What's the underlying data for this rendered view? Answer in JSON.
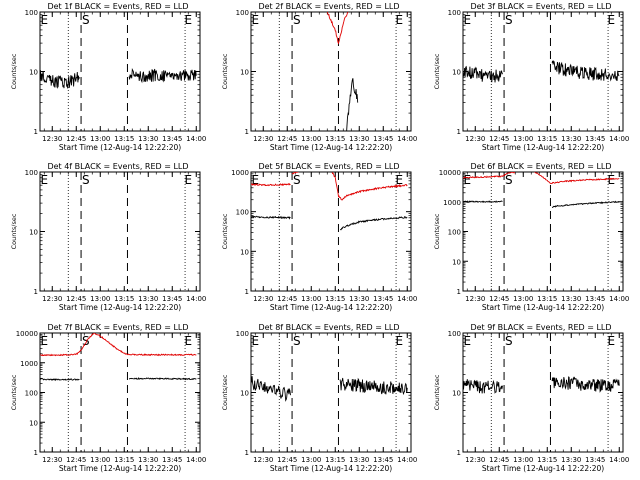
{
  "x_tick_labels": [
    "12:30",
    "12:45",
    "13:00",
    "13:15",
    "13:30",
    "13:45",
    "14:00"
  ],
  "xlabel": "Start Time (12-Aug-14 12:22:20)",
  "ylabel": "Counts/sec",
  "markers": {
    "E": "E",
    "S": "S"
  },
  "colors": {
    "events": "#000000",
    "lld": "#e00000"
  },
  "chart_data": [
    {
      "type": "line",
      "title": "Det 1f BLACK = Events, RED = LLD",
      "xlabel": "Start Time (12-Aug-14 12:22:20)",
      "ylabel": "Counts/sec",
      "x_unit": "minutes after 12:22:20",
      "xlim": [
        "12:22:20",
        "14:02:20"
      ],
      "ylim": [
        1,
        100
      ],
      "y_ticks": [
        "1",
        "10",
        "100"
      ],
      "yscale": "log",
      "dotted_lines": [
        "12:40",
        "13:53"
      ],
      "dashed_lines": [
        "12:48",
        "13:17"
      ],
      "labels": [
        {
          "text": "E",
          "x": "12:25"
        },
        {
          "text": "E",
          "x": "13:55"
        },
        {
          "text": "S",
          "x": "12:51"
        }
      ],
      "series": [
        {
          "color": "black",
          "segments": [
            {
              "x": [
                "12:22:20",
                "12:30",
                "12:40",
                "12:47"
              ],
              "y": [
                9,
                7,
                6.5,
                8
              ]
            },
            {
              "x": [
                "13:18",
                "13:30",
                "13:45",
                "14:00"
              ],
              "y": [
                9,
                8.5,
                9,
                8.5
              ]
            }
          ]
        }
      ]
    },
    {
      "type": "line",
      "title": "Det 2f BLACK = Events, RED = LLD",
      "xlabel": "Start Time (12-Aug-14 12:22:20)",
      "ylabel": "Counts/sec",
      "x_unit": "minutes after 12:22:20",
      "xlim": [
        "12:22:20",
        "14:02:20"
      ],
      "ylim": [
        1,
        100
      ],
      "y_ticks": [
        "1",
        "10",
        "100"
      ],
      "yscale": "log",
      "dotted_lines": [
        "12:40",
        "13:53"
      ],
      "dashed_lines": [
        "12:48",
        "13:17"
      ],
      "labels": [
        {
          "text": "E",
          "x": "12:25"
        },
        {
          "text": "E",
          "x": "13:55"
        },
        {
          "text": "S",
          "x": "12:51"
        }
      ],
      "series": [
        {
          "color": "black",
          "segments": [
            {
              "x": [
                "13:22",
                "13:23",
                "13:24",
                "13:25",
                "13:26",
                "13:27",
                "13:28",
                "13:29"
              ],
              "y": [
                1,
                1.6,
                3,
                5,
                6,
                5,
                4,
                3
              ]
            }
          ]
        },
        {
          "color": "red",
          "segments": [
            {
              "x": [
                "13:10",
                "13:15",
                "13:17",
                "13:19",
                "13:21",
                "13:23"
              ],
              "y": [
                100,
                50,
                30,
                50,
                80,
                100
              ]
            }
          ]
        }
      ]
    },
    {
      "type": "line",
      "title": "Det 3f BLACK = Events, RED = LLD",
      "xlabel": "Start Time (12-Aug-14 12:22:20)",
      "ylabel": "Counts/sec",
      "x_unit": "minutes after 12:22:20",
      "xlim": [
        "12:22:20",
        "14:02:20"
      ],
      "ylim": [
        1,
        100
      ],
      "y_ticks": [
        "1",
        "10",
        "100"
      ],
      "yscale": "log",
      "dotted_lines": [
        "12:40",
        "13:53"
      ],
      "dashed_lines": [
        "12:48",
        "13:17"
      ],
      "labels": [
        {
          "text": "E",
          "x": "12:25"
        },
        {
          "text": "E",
          "x": "13:55"
        },
        {
          "text": "S",
          "x": "12:51"
        }
      ],
      "series": [
        {
          "color": "black",
          "segments": [
            {
              "x": [
                "12:22:20",
                "12:30",
                "12:40",
                "12:47"
              ],
              "y": [
                10,
                9,
                8,
                9
              ]
            },
            {
              "x": [
                "13:18",
                "13:20",
                "13:30",
                "13:45",
                "14:00"
              ],
              "y": [
                13,
                12,
                10,
                9,
                8.5
              ]
            }
          ]
        }
      ]
    },
    {
      "type": "line",
      "title": "Det 4f BLACK = Events, RED = LLD",
      "xlabel": "Start Time (12-Aug-14 12:22:20)",
      "ylabel": "Counts/sec",
      "x_unit": "minutes after 12:22:20",
      "xlim": [
        "12:22:20",
        "14:02:20"
      ],
      "ylim": [
        1,
        100
      ],
      "y_ticks": [
        "1",
        "10",
        "100"
      ],
      "yscale": "log",
      "dotted_lines": [
        "12:40",
        "13:53"
      ],
      "dashed_lines": [
        "12:48",
        "13:17"
      ],
      "labels": [
        {
          "text": "E",
          "x": "12:25"
        },
        {
          "text": "E",
          "x": "13:55"
        },
        {
          "text": "S",
          "x": "12:51"
        }
      ],
      "series": []
    },
    {
      "type": "line",
      "title": "Det 5f BLACK = Events, RED = LLD",
      "xlabel": "Start Time (12-Aug-14 12:22:20)",
      "ylabel": "Counts/sec",
      "x_unit": "minutes after 12:22:20",
      "xlim": [
        "12:22:20",
        "14:02:20"
      ],
      "ylim": [
        1,
        1000
      ],
      "y_ticks": [
        "1",
        "10",
        "100",
        "1000"
      ],
      "yscale": "log",
      "dotted_lines": [
        "12:40",
        "13:53"
      ],
      "dashed_lines": [
        "12:48",
        "13:17"
      ],
      "labels": [
        {
          "text": "E",
          "x": "12:25"
        },
        {
          "text": "E",
          "x": "13:55"
        },
        {
          "text": "S",
          "x": "12:51"
        }
      ],
      "series": [
        {
          "color": "black",
          "segments": [
            {
              "x": [
                "12:22:20",
                "12:35",
                "12:47"
              ],
              "y": [
                75,
                72,
                70
              ]
            },
            {
              "x": [
                "13:18",
                "13:20",
                "13:25",
                "13:30",
                "13:40",
                "13:50",
                "14:00"
              ],
              "y": [
                35,
                40,
                48,
                55,
                62,
                68,
                72
              ]
            }
          ]
        },
        {
          "color": "red",
          "segments": [
            {
              "x": [
                "12:22:20",
                "12:35",
                "12:47"
              ],
              "y": [
                480,
                470,
                490
              ]
            },
            {
              "x": [
                "12:48",
                "12:50",
                "12:52"
              ],
              "y": [
                900,
                1000,
                1000
              ]
            },
            {
              "x": [
                "13:13",
                "13:15",
                "13:17",
                "13:19",
                "13:22",
                "13:30",
                "13:40",
                "13:50",
                "14:00"
              ],
              "y": [
                1000,
                700,
                250,
                200,
                250,
                320,
                380,
                430,
                470
              ]
            }
          ]
        }
      ]
    },
    {
      "type": "line",
      "title": "Det 6f BLACK = Events, RED = LLD",
      "xlabel": "Start Time (12-Aug-14 12:22:20)",
      "ylabel": "Counts/sec",
      "x_unit": "minutes after 12:22:20",
      "xlim": [
        "12:22:20",
        "14:02:20"
      ],
      "ylim": [
        1,
        10000
      ],
      "y_ticks": [
        "1",
        "10",
        "100",
        "1000",
        "10000"
      ],
      "yscale": "log",
      "dotted_lines": [
        "12:40",
        "13:53"
      ],
      "dashed_lines": [
        "12:48",
        "13:17"
      ],
      "labels": [
        {
          "text": "E",
          "x": "12:25"
        },
        {
          "text": "E",
          "x": "13:55"
        },
        {
          "text": "S",
          "x": "12:51"
        }
      ],
      "series": [
        {
          "color": "black",
          "segments": [
            {
              "x": [
                "12:22:20",
                "12:35",
                "12:47"
              ],
              "y": [
                1000,
                1000,
                1020
              ]
            },
            {
              "x": [
                "13:18",
                "13:20",
                "13:30",
                "13:45",
                "14:00"
              ],
              "y": [
                650,
                700,
                800,
                900,
                1000
              ]
            }
          ]
        },
        {
          "color": "red",
          "segments": [
            {
              "x": [
                "12:22:20",
                "12:35",
                "12:47",
                "12:50",
                "12:55"
              ],
              "y": [
                6500,
                6800,
                7200,
                9000,
                10000
              ]
            },
            {
              "x": [
                "13:07",
                "13:12",
                "13:17",
                "13:25",
                "13:40",
                "14:00"
              ],
              "y": [
                10000,
                7000,
                4200,
                4800,
                5500,
                6000
              ]
            }
          ]
        }
      ]
    },
    {
      "type": "line",
      "title": "Det 7f BLACK = Events, RED = LLD",
      "xlabel": "Start Time (12-Aug-14 12:22:20)",
      "ylabel": "Counts/sec",
      "x_unit": "minutes after 12:22:20",
      "xlim": [
        "12:22:20",
        "14:02:20"
      ],
      "ylim": [
        1,
        10000
      ],
      "y_ticks": [
        "1",
        "10",
        "100",
        "1000",
        "10000"
      ],
      "yscale": "log",
      "dotted_lines": [
        "12:40",
        "13:53"
      ],
      "dashed_lines": [
        "12:48",
        "13:17"
      ],
      "labels": [
        {
          "text": "E",
          "x": "12:25"
        },
        {
          "text": "E",
          "x": "13:55"
        },
        {
          "text": "S",
          "x": "12:51"
        }
      ],
      "series": [
        {
          "color": "black",
          "segments": [
            {
              "x": [
                "12:22:20",
                "12:35",
                "12:47"
              ],
              "y": [
                280,
                270,
                275
              ]
            },
            {
              "x": [
                "13:18",
                "13:30",
                "13:45",
                "14:00"
              ],
              "y": [
                290,
                295,
                290,
                280
              ]
            }
          ]
        },
        {
          "color": "red",
          "segments": [
            {
              "x": [
                "12:22:20",
                "12:35",
                "12:45",
                "12:48",
                "12:52",
                "12:56",
                "13:00",
                "13:05",
                "13:10",
                "13:15",
                "13:17",
                "13:30",
                "14:00"
              ],
              "y": [
                1800,
                1800,
                1900,
                2600,
                6000,
                10000,
                8000,
                5000,
                3000,
                2100,
                1900,
                1850,
                1850
              ]
            }
          ]
        }
      ]
    },
    {
      "type": "line",
      "title": "Det 8f BLACK = Events, RED = LLD",
      "xlabel": "Start Time (12-Aug-14 12:22:20)",
      "ylabel": "Counts/sec",
      "x_unit": "minutes after 12:22:20",
      "xlim": [
        "12:22:20",
        "14:02:20"
      ],
      "ylim": [
        1,
        100
      ],
      "y_ticks": [
        "1",
        "10",
        "100"
      ],
      "yscale": "log",
      "dotted_lines": [
        "12:40",
        "13:53"
      ],
      "dashed_lines": [
        "12:48",
        "13:17"
      ],
      "labels": [
        {
          "text": "E",
          "x": "12:25"
        },
        {
          "text": "E",
          "x": "13:55"
        },
        {
          "text": "S",
          "x": "12:51"
        }
      ],
      "series": [
        {
          "color": "black",
          "segments": [
            {
              "x": [
                "12:22:20",
                "12:30",
                "12:40",
                "12:47"
              ],
              "y": [
                15,
                12,
                10,
                9
              ]
            },
            {
              "x": [
                "13:18",
                "13:30",
                "13:45",
                "14:00"
              ],
              "y": [
                14,
                13,
                12,
                12
              ]
            }
          ]
        }
      ]
    },
    {
      "type": "line",
      "title": "Det 9f BLACK = Events, RED = LLD",
      "xlabel": "Start Time (12-Aug-14 12:22:20)",
      "ylabel": "Counts/sec",
      "x_unit": "minutes after 12:22:20",
      "xlim": [
        "12:22:20",
        "14:02:20"
      ],
      "ylim": [
        1,
        100
      ],
      "y_ticks": [
        "1",
        "10",
        "100"
      ],
      "yscale": "log",
      "dotted_lines": [
        "12:40",
        "13:53"
      ],
      "dashed_lines": [
        "12:48",
        "13:17"
      ],
      "labels": [
        {
          "text": "E",
          "x": "12:25"
        },
        {
          "text": "E",
          "x": "13:55"
        },
        {
          "text": "S",
          "x": "12:51"
        }
      ],
      "series": [
        {
          "color": "black",
          "segments": [
            {
              "x": [
                "12:22:20",
                "12:35",
                "12:47"
              ],
              "y": [
                14,
                12,
                13
              ]
            },
            {
              "x": [
                "13:18",
                "13:30",
                "13:45",
                "14:00"
              ],
              "y": [
                15,
                14,
                13,
                13
              ]
            }
          ]
        }
      ]
    }
  ]
}
